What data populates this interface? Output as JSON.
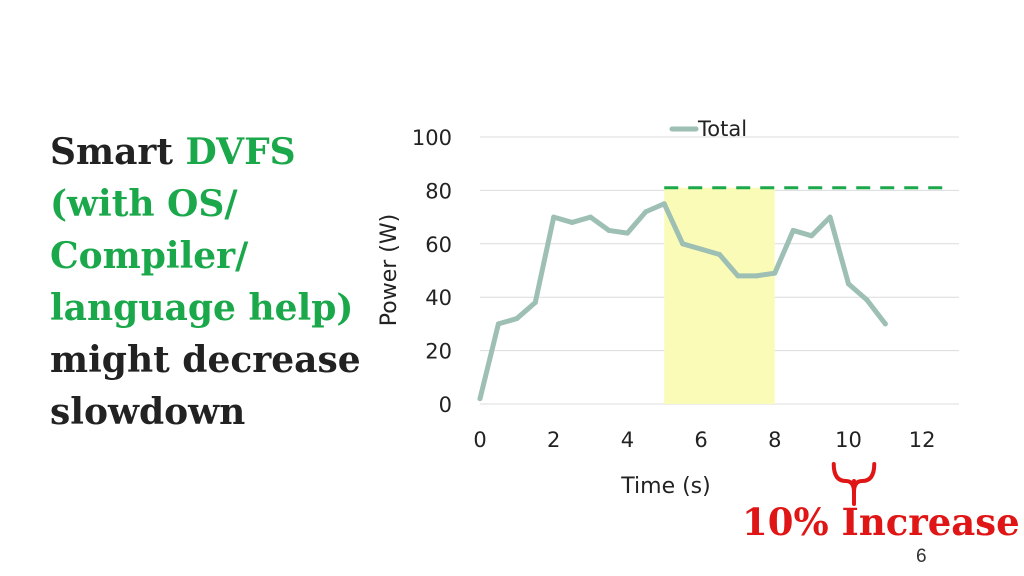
{
  "headline": {
    "lines": [
      [
        {
          "text": "Smart ",
          "color": "dark"
        },
        {
          "text": "DVFS",
          "color": "green"
        }
      ],
      [
        {
          "text": "(with OS/",
          "color": "green"
        }
      ],
      [
        {
          "text": "Compiler/",
          "color": "green"
        }
      ],
      [
        {
          "text": "language help)",
          "color": "green"
        }
      ],
      [
        {
          "text": "might decrease",
          "color": "dark"
        }
      ],
      [
        {
          "text": "slowdown",
          "color": "dark"
        }
      ]
    ]
  },
  "annotation": {
    "text": "10% Increase",
    "color": "#e01515"
  },
  "page_number": "6",
  "colors": {
    "line": "#9dbfb4",
    "highlight": "#fbfbb8",
    "cap": "#1aa84b",
    "grid": "#dcdcdc",
    "brace": "#e01515"
  },
  "chart_data": {
    "type": "line",
    "title": "",
    "xlabel": "Time (s)",
    "ylabel": "Power (W)",
    "xlim": [
      0,
      13
    ],
    "ylim": [
      0,
      100
    ],
    "xticks": [
      0,
      2,
      4,
      6,
      8,
      10,
      12
    ],
    "yticks": [
      0,
      20,
      40,
      60,
      80,
      100
    ],
    "grid": "horizontal",
    "legend": "top",
    "series": [
      {
        "name": "Total",
        "x": [
          0,
          0.5,
          1,
          1.5,
          2,
          2.5,
          3,
          3.5,
          4,
          4.5,
          5,
          5.5,
          6,
          6.5,
          7,
          7.5,
          8,
          8.5,
          9,
          9.5,
          10,
          10.5,
          11
        ],
        "y": [
          2,
          30,
          32,
          38,
          70,
          68,
          70,
          65,
          64,
          72,
          75,
          60,
          58,
          56,
          48,
          48,
          49,
          65,
          63,
          70,
          45,
          39,
          30
        ]
      }
    ],
    "highlight_band": {
      "x": [
        5,
        8
      ],
      "y": [
        0,
        81
      ]
    },
    "power_cap": {
      "y": 81,
      "x": [
        5,
        12.8
      ]
    },
    "brace_x": [
      9.6,
      10.7
    ]
  }
}
